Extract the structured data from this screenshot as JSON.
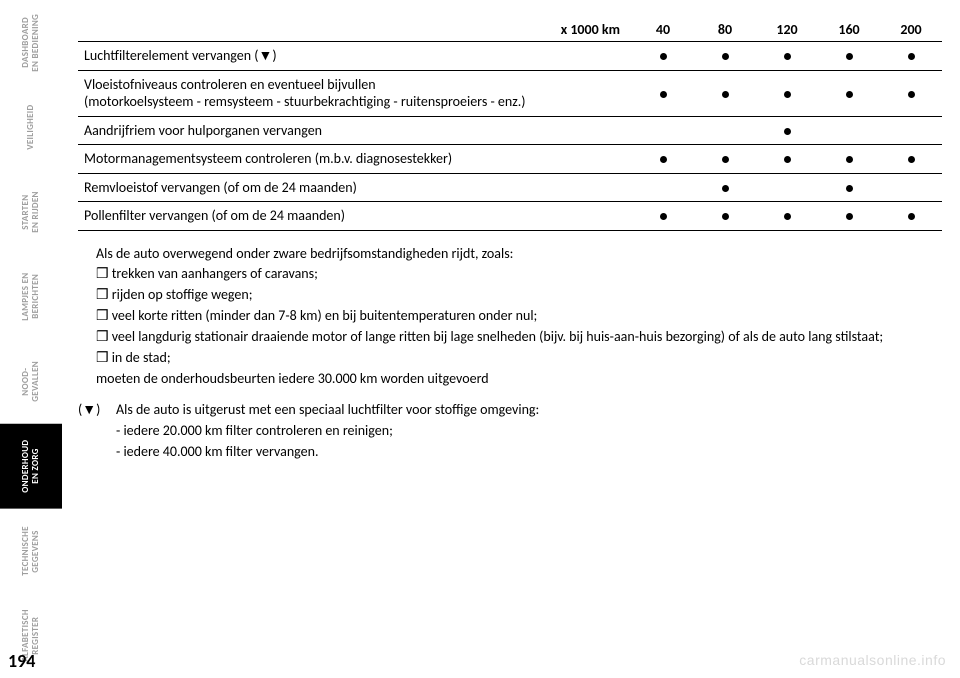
{
  "sidebar": {
    "tabs": [
      {
        "label": "DASHBOARD\nEN BEDIENING",
        "active": false
      },
      {
        "label": "VEILIGHEID",
        "active": false
      },
      {
        "label": "STARTEN\nEN RIJDEN",
        "active": false
      },
      {
        "label": "LAMPJES EN\nBERICHTEN",
        "active": false
      },
      {
        "label": "NOOD-\nGEVALLEN",
        "active": false
      },
      {
        "label": "ONDERHOUD\nEN ZORG",
        "active": true
      },
      {
        "label": "TECHNISCHE\nGEGEVENS",
        "active": false
      },
      {
        "label": "ALFABETISCH\nREGISTER",
        "active": false
      }
    ]
  },
  "page_number": "194",
  "table": {
    "header_label": "x 1000 km",
    "columns": [
      "40",
      "80",
      "120",
      "160",
      "200"
    ],
    "rows": [
      {
        "label": "Luchtfilterelement vervangen (▼)",
        "dots": [
          true,
          true,
          true,
          true,
          true
        ]
      },
      {
        "label": "Vloeistofniveaus controleren en eventueel bijvullen\n(motorkoelsysteem - remsysteem - stuurbekrachtiging - ruitensproeiers - enz.)",
        "dots": [
          true,
          true,
          true,
          true,
          true
        ]
      },
      {
        "label": "Aandrijfriem voor hulporganen vervangen",
        "dots": [
          false,
          false,
          true,
          false,
          false
        ]
      },
      {
        "label": "Motormanagementsysteem controleren (m.b.v. diagnosestekker)",
        "dots": [
          true,
          true,
          true,
          true,
          true
        ]
      },
      {
        "label": "Remvloeistof vervangen (of om de 24 maanden)",
        "dots": [
          false,
          true,
          false,
          true,
          false
        ]
      },
      {
        "label": "Pollenfilter vervangen (of om de 24 maanden)",
        "dots": [
          true,
          true,
          true,
          true,
          true
        ]
      }
    ]
  },
  "notes": {
    "intro": "Als de auto overwegend onder zware bedrijfsomstandigheden rijdt, zoals:",
    "bullets": [
      "trekken van aanhangers of caravans;",
      "rijden op stoffige wegen;",
      "veel korte ritten (minder dan 7-8 km) en bij buitentemperaturen onder nul;",
      "veel langdurig stationair draaiende motor of lange ritten bij lage snelheden (bijv. bij huis-aan-huis bezorging) of als de auto lang stilstaat;",
      "in de stad;"
    ],
    "outro": "moeten de onderhoudsbeurten iedere 30.000 km worden uitgevoerd",
    "footnote_mark": "(▼)",
    "footnote_lines": [
      "Als de auto is uitgerust met een speciaal luchtfilter voor stoffige omgeving:",
      "- iedere 20.000 km filter controleren en reinigen;",
      "- iedere 40.000 km filter vervangen."
    ]
  },
  "watermark": "carmanualsonline.info"
}
